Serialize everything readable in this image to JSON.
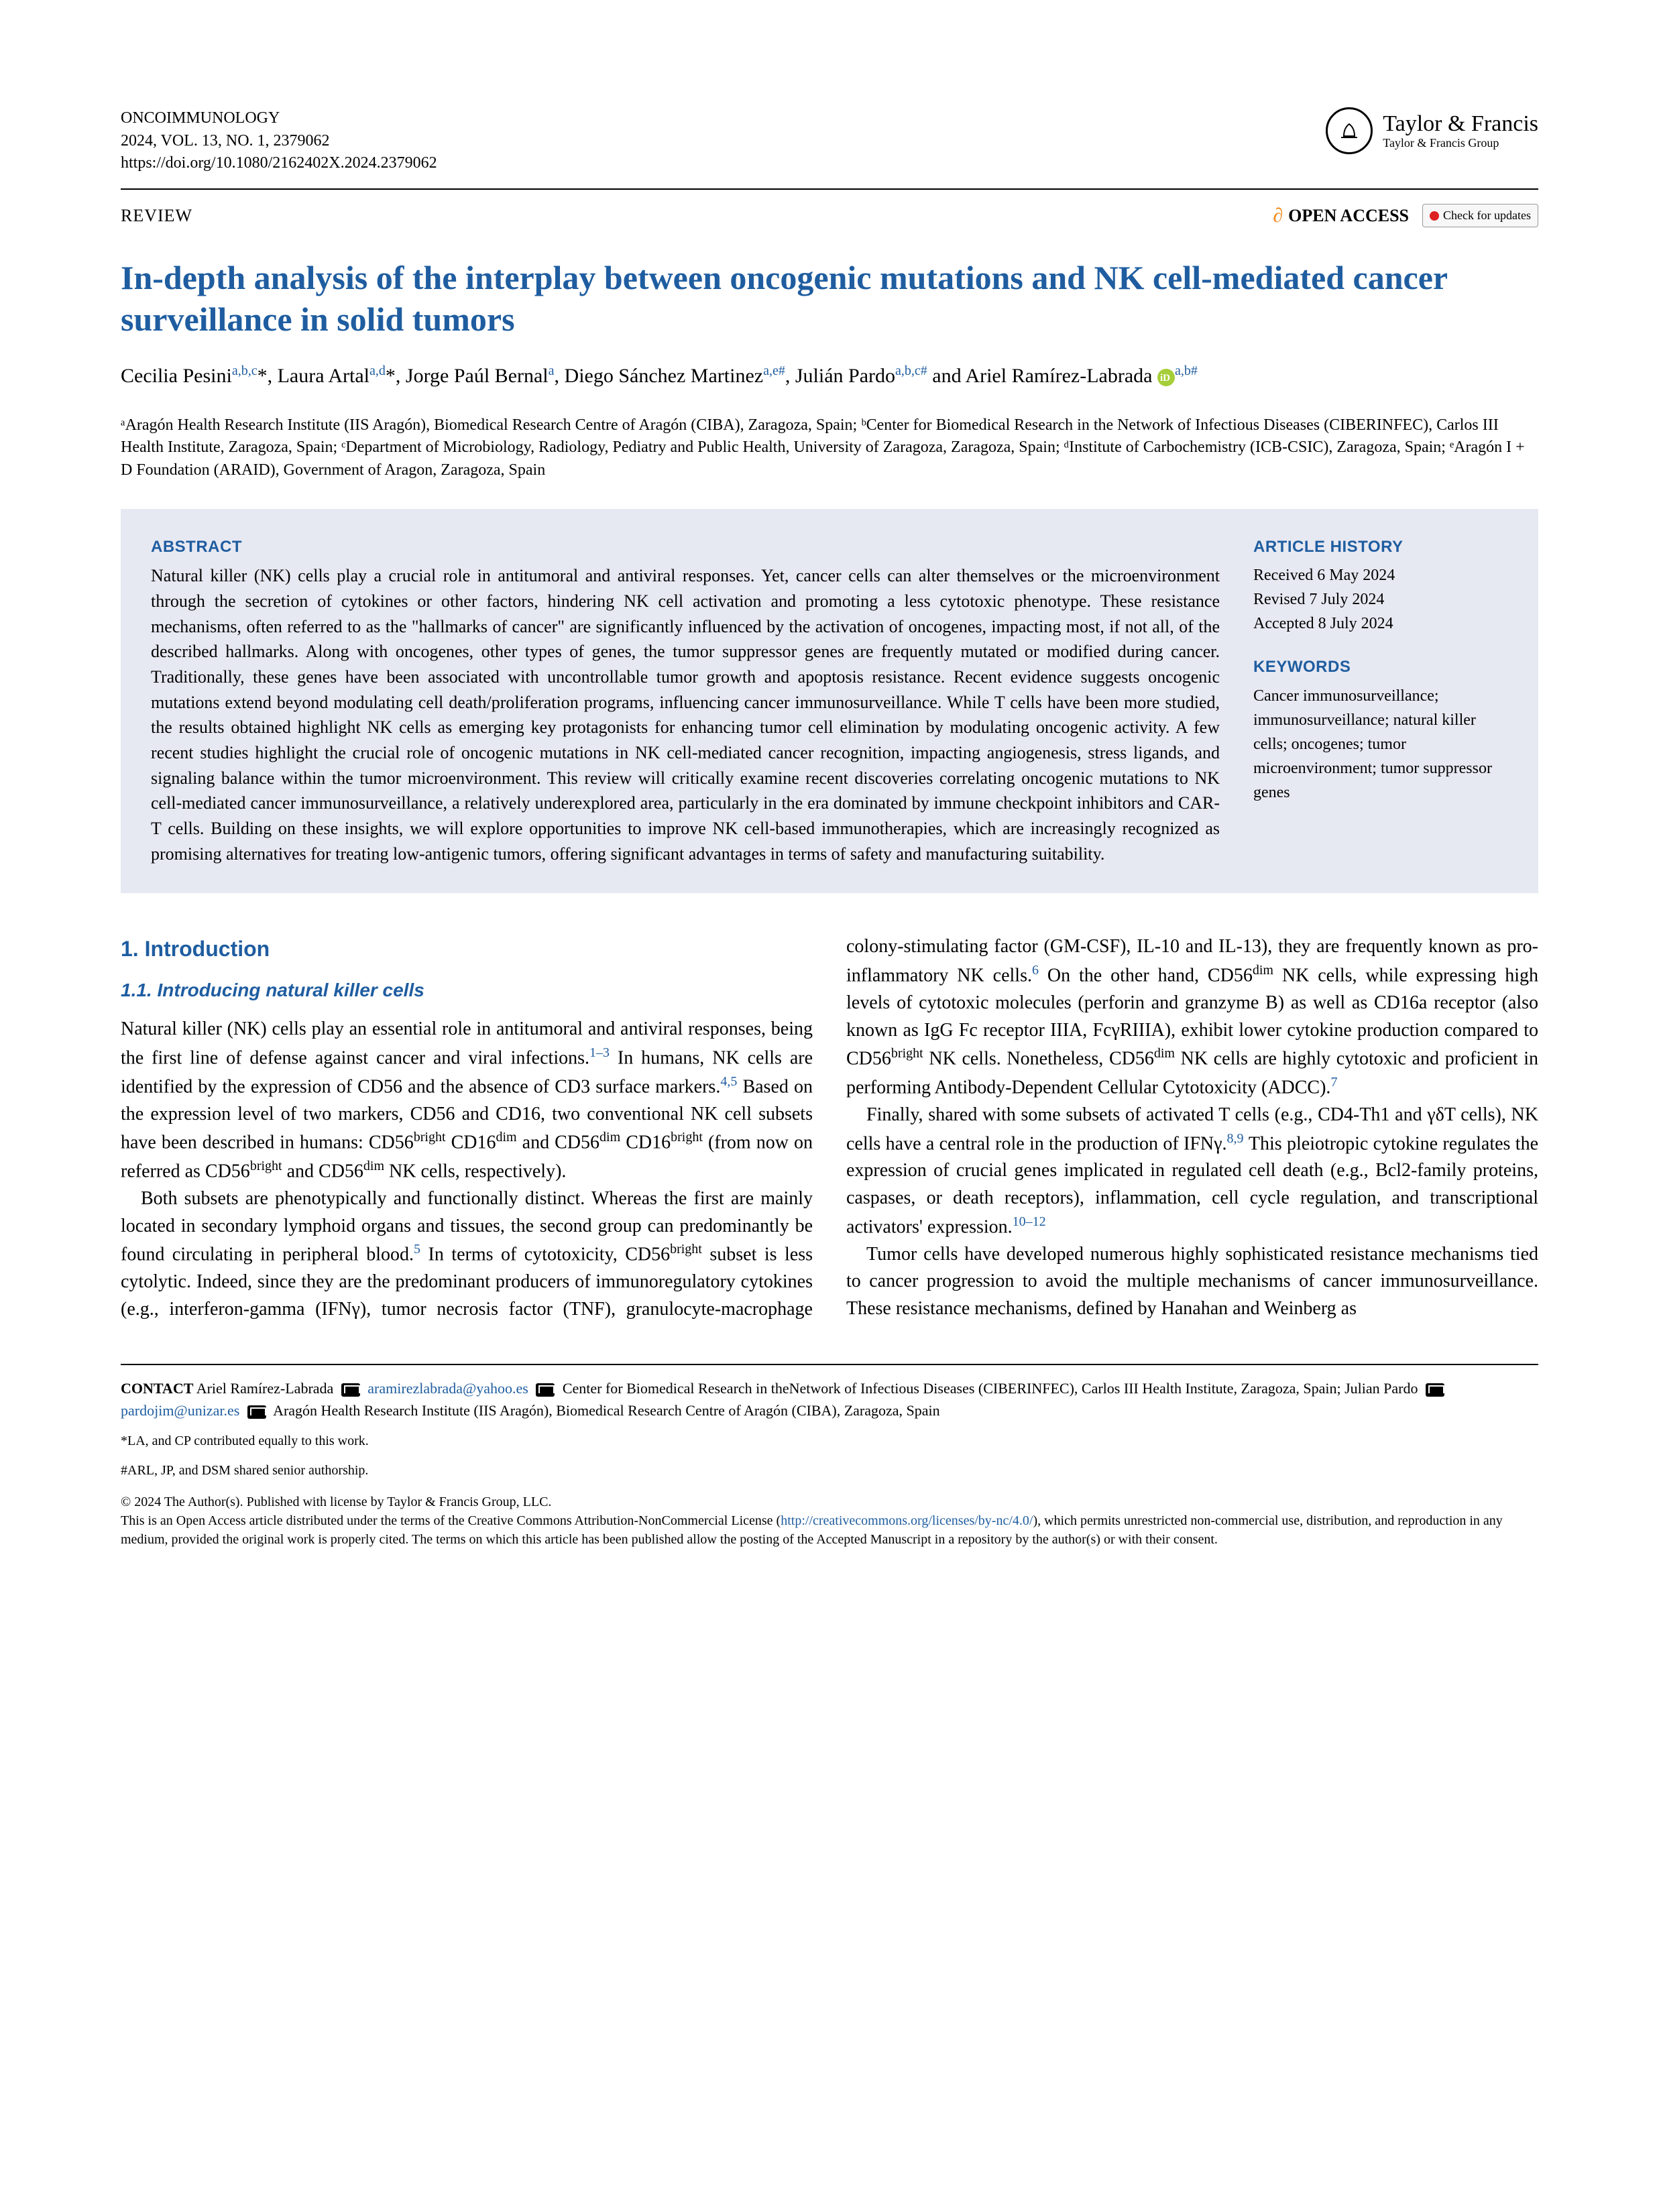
{
  "header": {
    "journal_name": "ONCOIMMUNOLOGY",
    "citation": "2024, VOL. 13, NO. 1, 2379062",
    "doi": "https://doi.org/10.1080/2162402X.2024.2379062",
    "publisher_main": "Taylor & Francis",
    "publisher_sub": "Taylor & Francis Group"
  },
  "labels": {
    "review": "REVIEW",
    "open_access": "OPEN ACCESS",
    "check_updates": "Check for updates"
  },
  "title": "In-depth analysis of the interplay between oncogenic mutations and NK cell-mediated cancer surveillance in solid tumors",
  "authors_html": "Cecilia Pesini<sup class='affil-sup'>a,b,c</sup>*, Laura Artal<sup class='affil-sup'>a,d</sup>*, Jorge Paúl Bernal<sup class='affil-sup'>a</sup>, Diego Sánchez Martinez<sup class='affil-sup'>a,e#</sup>, Julián Pardo<sup class='affil-sup'>a,b,c#</sup> and Ariel Ramírez-Labrada <span class='orcid'></span><sup class='affil-sup'>a,b#</sup>",
  "affiliations": "ᵃAragón Health Research Institute (IIS Aragón), Biomedical Research Centre of Aragón (CIBA), Zaragoza, Spain; ᵇCenter for Biomedical Research in the Network of Infectious Diseases (CIBERINFEC), Carlos III Health Institute, Zaragoza, Spain; ᶜDepartment of Microbiology, Radiology, Pediatry and Public Health, University of Zaragoza, Zaragoza, Spain; ᵈInstitute of Carbochemistry (ICB-CSIC), Zaragoza, Spain; ᵉAragón I + D Foundation (ARAID), Government of Aragon, Zaragoza, Spain",
  "abstract": {
    "head": "ABSTRACT",
    "text": "Natural killer (NK) cells play a crucial role in antitumoral and antiviral responses. Yet, cancer cells can alter themselves or the microenvironment through the secretion of cytokines or other factors, hindering NK cell activation and promoting a less cytotoxic phenotype. These resistance mechanisms, often referred to as the \"hallmarks of cancer\" are significantly influenced by the activation of oncogenes, impacting most, if not all, of the described hallmarks. Along with oncogenes, other types of genes, the tumor suppressor genes are frequently mutated or modified during cancer. Traditionally, these genes have been associated with uncontrollable tumor growth and apoptosis resistance. Recent evidence suggests oncogenic mutations extend beyond modulating cell death/proliferation programs, influencing cancer immunosurveillance. While T cells have been more studied, the results obtained highlight NK cells as emerging key protagonists for enhancing tumor cell elimination by modulating oncogenic activity. A few recent studies highlight the crucial role of oncogenic mutations in NK cell-mediated cancer recognition, impacting angiogenesis, stress ligands, and signaling balance within the tumor microenvironment. This review will critically examine recent discoveries correlating oncogenic mutations to NK cell-mediated cancer immunosurveillance, a relatively underexplored area, particularly in the era dominated by immune checkpoint inhibitors and CAR-T cells. Building on these insights, we will explore opportunities to improve NK cell-based immunotherapies, which are increasingly recognized as promising alternatives for treating low-antigenic tumors, offering significant advantages in terms of safety and manufacturing suitability."
  },
  "history": {
    "head": "ARTICLE HISTORY",
    "received": "Received 6 May 2024",
    "revised": "Revised 7 July 2024",
    "accepted": "Accepted 8 July 2024"
  },
  "keywords": {
    "head": "KEYWORDS",
    "text": "Cancer immunosurveillance; immunosurveillance; natural killer cells; oncogenes; tumor microenvironment; tumor suppressor genes"
  },
  "sections": {
    "s1": "1.  Introduction",
    "s1_1": "1.1.  Introducing natural killer cells"
  },
  "footer": {
    "contact_label": "CONTACT",
    "contact_name": "Ariel Ramírez-Labrada",
    "email1": "aramirezlabrada@yahoo.es",
    "addr1": "Center for Biomedical Research in theNetwork of Infectious Diseases (CIBERINFEC), Carlos III Health Institute, Zaragoza, Spain; Julian Pardo",
    "email2": "pardojim@unizar.es",
    "addr2": "Aragón Health Research Institute (IIS Aragón), Biomedical Research Centre of Aragón (CIBA), Zaragoza, Spain",
    "note1": "*LA, and CP contributed equally to this work.",
    "note2": "#ARL, JP, and DSM shared senior authorship.",
    "copyright": "© 2024 The Author(s). Published with license by Taylor & Francis Group, LLC.",
    "license_text": "This is an Open Access article distributed under the terms of the Creative Commons Attribution-NonCommercial License (",
    "license_url": "http://creativecommons.org/licenses/by-nc/4.0/",
    "license_tail": "), which permits unrestricted non-commercial use, distribution, and reproduction in any medium, provided the original work is properly cited. The terms on which this article has been published allow the posting of the Accepted Manuscript in a repository by the author(s) or with their consent."
  }
}
